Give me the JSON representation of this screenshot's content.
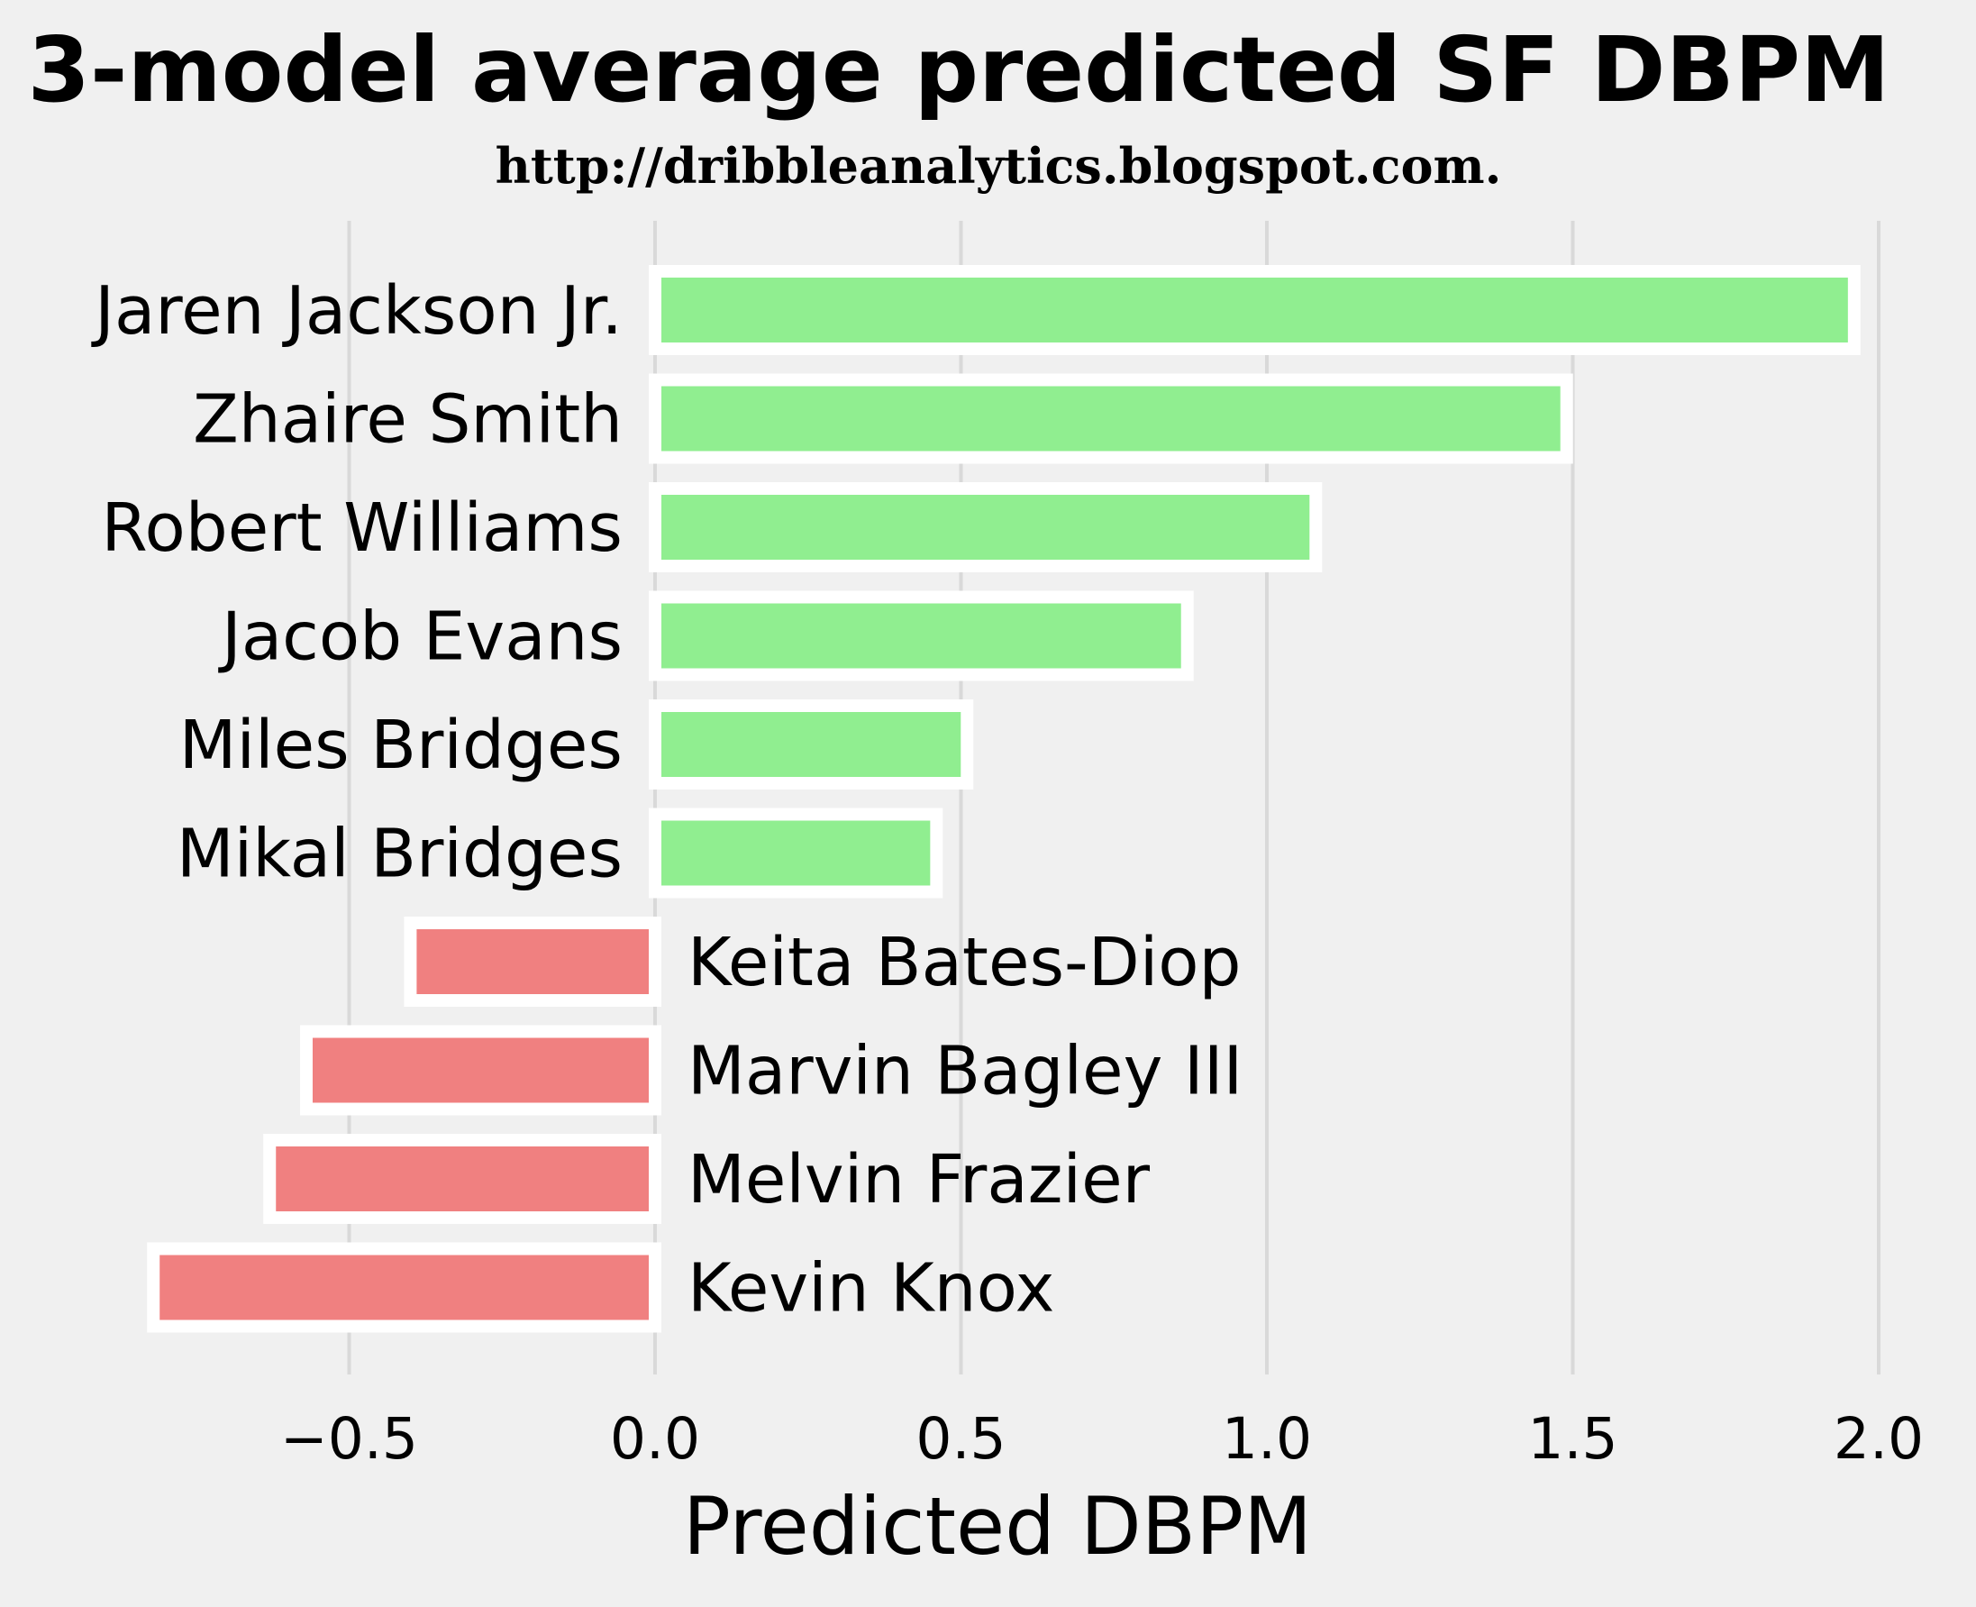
{
  "chart_data": {
    "type": "bar",
    "orientation": "horizontal",
    "title": "3-model average predicted SF DBPM",
    "subtitle": "http://dribbleanalytics.blogspot.com.",
    "xlabel": "Predicted DBPM",
    "ylabel": "",
    "xlim": [
      -1.0,
      2.05
    ],
    "xticks": [
      -0.5,
      0.0,
      0.5,
      1.0,
      1.5,
      2.0
    ],
    "xtick_labels": [
      "−0.5",
      "0.0",
      "0.5",
      "1.0",
      "1.5",
      "2.0"
    ],
    "grid": "vertical",
    "categories": [
      "Jaren Jackson Jr.",
      "Zhaire Smith",
      "Robert Williams",
      "Jacob Evans",
      "Miles Bridges",
      "Mikal Bridges",
      "Keita Bates-Diop",
      "Marvin Bagley III",
      "Melvin Frazier",
      "Kevin Knox"
    ],
    "values": [
      1.96,
      1.49,
      1.08,
      0.87,
      0.51,
      0.46,
      -0.4,
      -0.57,
      -0.63,
      -0.82
    ],
    "colors": {
      "positive": "#90ee90",
      "negative": "#f08080",
      "background": "#f0f0f0",
      "grid": "#d9d9d9",
      "bar_edge": "#ffffff"
    }
  }
}
